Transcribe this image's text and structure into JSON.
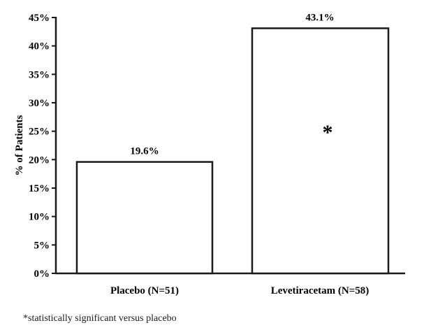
{
  "chart_data": {
    "type": "bar",
    "title": "",
    "xlabel": "",
    "ylabel": "% of Patients",
    "categories": [
      "Placebo (N=51)",
      "Levetiracetam (N=58)"
    ],
    "values": [
      19.6,
      43.1
    ],
    "value_labels": [
      "19.6%",
      "43.1%"
    ],
    "annotations": [
      {
        "category": "Levetiracetam (N=58)",
        "text": "*"
      }
    ],
    "ylim": [
      0,
      45
    ],
    "yticks": [
      0,
      5,
      10,
      15,
      20,
      25,
      30,
      35,
      40,
      45
    ],
    "ytick_labels": [
      "0%",
      "5%",
      "10%",
      "15%",
      "20%",
      "25%",
      "30%",
      "35%",
      "40%",
      "45%"
    ],
    "grid": false,
    "legend": null,
    "bar_fill": "#ffffff",
    "bar_edge": "#1a1a1a"
  },
  "footnote": "*statistically significant versus placebo",
  "significance_marker": "*"
}
